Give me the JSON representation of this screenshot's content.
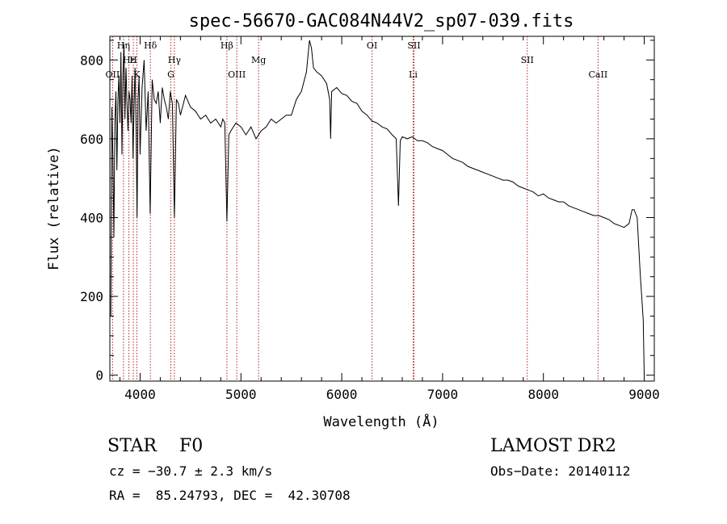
{
  "chart_data": {
    "type": "line",
    "title": "spec-56670-GAC084N44V2_sp07-039.fits",
    "xlabel": "Wavelength (Å)",
    "ylabel": "Flux (relative)",
    "xlim": [
      3700,
      9100
    ],
    "ylim": [
      -15,
      860
    ],
    "xticks": [
      4000,
      5000,
      6000,
      7000,
      8000,
      9000
    ],
    "yticks": [
      0,
      200,
      400,
      600,
      800
    ],
    "grid": false,
    "line_color": "#000000",
    "marker_color": "#b22222",
    "series": [
      {
        "x": [
          3710,
          3720,
          3730,
          3740,
          3750,
          3760,
          3770,
          3780,
          3790,
          3800,
          3810,
          3820,
          3830,
          3840,
          3850,
          3860,
          3870,
          3880,
          3890,
          3900,
          3910,
          3920,
          3930,
          3940,
          3950,
          3960,
          3970,
          3980,
          3990,
          4000,
          4020,
          4040,
          4060,
          4080,
          4100,
          4120,
          4140,
          4160,
          4180,
          4200,
          4220,
          4240,
          4260,
          4280,
          4300,
          4320,
          4340,
          4360,
          4380,
          4400,
          4450,
          4500,
          4550,
          4600,
          4650,
          4700,
          4750,
          4800,
          4820,
          4840,
          4861,
          4880,
          4900,
          4950,
          5000,
          5050,
          5100,
          5150,
          5200,
          5250,
          5300,
          5350,
          5400,
          5450,
          5500,
          5550,
          5600,
          5650,
          5680,
          5700,
          5720,
          5750,
          5800,
          5850,
          5880,
          5890,
          5900,
          5950,
          6000,
          6050,
          6100,
          6150,
          6200,
          6250,
          6300,
          6350,
          6400,
          6450,
          6500,
          6540,
          6563,
          6580,
          6600,
          6650,
          6700,
          6750,
          6800,
          6850,
          6900,
          6950,
          7000,
          7050,
          7100,
          7150,
          7200,
          7250,
          7300,
          7350,
          7400,
          7450,
          7500,
          7550,
          7600,
          7650,
          7700,
          7750,
          7800,
          7850,
          7900,
          7950,
          8000,
          8050,
          8100,
          8150,
          8200,
          8250,
          8300,
          8350,
          8400,
          8450,
          8500,
          8550,
          8600,
          8650,
          8700,
          8750,
          8800,
          8850,
          8880,
          8900,
          8930,
          8960,
          8990,
          9000
        ],
        "values": [
          150,
          680,
          560,
          350,
          640,
          720,
          520,
          700,
          760,
          640,
          820,
          560,
          760,
          840,
          650,
          780,
          690,
          620,
          720,
          700,
          640,
          760,
          550,
          690,
          780,
          620,
          400,
          700,
          760,
          560,
          730,
          800,
          620,
          720,
          410,
          750,
          700,
          690,
          720,
          640,
          730,
          700,
          680,
          650,
          720,
          690,
          400,
          700,
          690,
          660,
          710,
          680,
          670,
          650,
          660,
          640,
          650,
          630,
          650,
          640,
          390,
          610,
          620,
          640,
          630,
          610,
          630,
          600,
          620,
          630,
          650,
          640,
          650,
          660,
          660,
          700,
          720,
          770,
          850,
          830,
          780,
          770,
          760,
          740,
          700,
          600,
          720,
          730,
          715,
          710,
          695,
          690,
          670,
          660,
          645,
          640,
          630,
          625,
          610,
          600,
          430,
          595,
          605,
          600,
          605,
          595,
          595,
          590,
          580,
          575,
          570,
          560,
          550,
          545,
          540,
          530,
          525,
          520,
          515,
          510,
          505,
          500,
          495,
          495,
          490,
          480,
          475,
          470,
          465,
          455,
          460,
          450,
          445,
          440,
          440,
          430,
          425,
          420,
          415,
          410,
          405,
          405,
          400,
          395,
          385,
          380,
          375,
          385,
          420,
          420,
          400,
          260,
          140,
          0
        ]
      }
    ],
    "line_markers": [
      {
        "label": "Hη",
        "x": 3835,
        "row": 0
      },
      {
        "label": "Hε",
        "x": 3889,
        "row": 1
      },
      {
        "label": "OII",
        "x": 3727,
        "row": 2
      },
      {
        "label": "H",
        "x": 3933,
        "row": 1
      },
      {
        "label": "K",
        "x": 3968,
        "row": 2
      },
      {
        "label": "Hδ",
        "x": 4102,
        "row": 0
      },
      {
        "label": "Hγ",
        "x": 4340,
        "row": 1
      },
      {
        "label": "G",
        "x": 4305,
        "row": 2
      },
      {
        "label": "Hβ",
        "x": 4861,
        "row": 0
      },
      {
        "label": "OIII",
        "x": 4959,
        "row": 2
      },
      {
        "label": "Mg",
        "x": 5175,
        "row": 1
      },
      {
        "label": "OI",
        "x": 6300,
        "row": 0
      },
      {
        "label": "SII",
        "x": 6716,
        "row": 0
      },
      {
        "label": "Li",
        "x": 6708,
        "row": 2
      },
      {
        "label": "SII",
        "x": 7840,
        "row": 1
      },
      {
        "label": "CaII",
        "x": 8542,
        "row": 2
      }
    ]
  },
  "info": {
    "class_line": "STAR    F0",
    "survey": "LAMOST DR2",
    "cz": "cz = −30.7 ± 2.3 km/s",
    "obs_date": "Obs−Date: 20140112",
    "coords": "RA =  85.24793, DEC =  42.30708"
  }
}
